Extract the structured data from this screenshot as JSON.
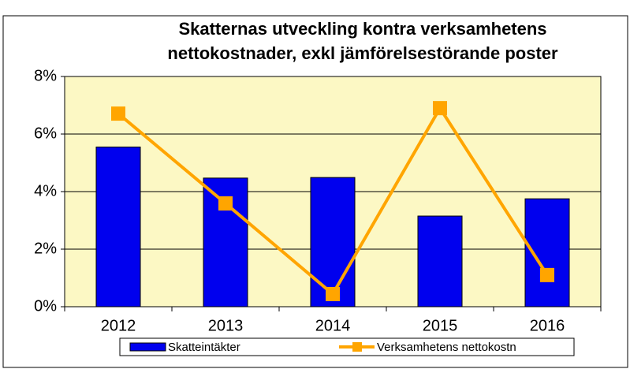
{
  "chart_data": {
    "type": "bar_line",
    "title_lines": [
      "Skatternas utveckling kontra verksamhetens",
      "nettokostnader, exkl jämförelsestörande poster"
    ],
    "categories": [
      "2012",
      "2013",
      "2014",
      "2015",
      "2016"
    ],
    "series": [
      {
        "name": "Skatteintäkter",
        "type": "bar",
        "color": "#0000ee",
        "values": [
          5.55,
          4.47,
          4.49,
          3.15,
          3.75
        ]
      },
      {
        "name": "Verksamhetens nettokostn",
        "type": "line",
        "color": "#ffa500",
        "values": [
          6.71,
          3.59,
          0.44,
          6.9,
          1.1
        ]
      }
    ],
    "ylim": [
      0,
      8
    ],
    "yticks": [
      {
        "value": 0,
        "label": "0%"
      },
      {
        "value": 2,
        "label": "2%"
      },
      {
        "value": 4,
        "label": "4%"
      },
      {
        "value": 6,
        "label": "6%"
      },
      {
        "value": 8,
        "label": "8%"
      }
    ],
    "grid": true,
    "legend": "bottom"
  }
}
